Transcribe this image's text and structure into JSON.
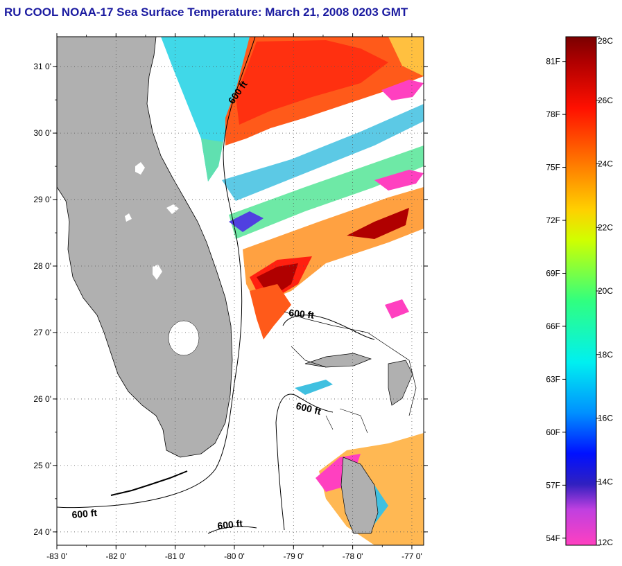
{
  "title": "RU COOL  NOAA-17  Sea Surface Temperature:  March 21, 2008 0203 GMT",
  "map": {
    "lon_range": [
      -83,
      -76.8
    ],
    "lat_range": [
      23.8,
      31.45
    ],
    "x_ticks": [
      "-83 0'",
      "-82 0'",
      "-81 0'",
      "-80 0'",
      "-79 0'",
      "-78 0'",
      "-77 0'"
    ],
    "x_tick_values": [
      -83,
      -82,
      -81,
      -80,
      -79,
      -78,
      -77
    ],
    "y_ticks": [
      "31 0'",
      "30 0'",
      "29 0'",
      "28 0'",
      "27 0'",
      "26 0'",
      "25 0'",
      "24 0'"
    ],
    "y_tick_values": [
      31,
      30,
      29,
      28,
      27,
      26,
      25,
      24
    ],
    "grid": "dotted",
    "contour_label": "600 ft",
    "contour_label_count": 5,
    "colors": {
      "land": "#b0b0b0",
      "no_data": "#ffffff"
    }
  },
  "colorbar": {
    "celsius_labels": [
      "28C",
      "26C",
      "24C",
      "22C",
      "20C",
      "18C",
      "16C",
      "14C",
      "12C"
    ],
    "celsius_values": [
      28,
      26,
      24,
      22,
      20,
      18,
      16,
      14,
      12
    ],
    "fahrenheit_labels": [
      "81F",
      "78F",
      "75F",
      "72F",
      "69F",
      "66F",
      "63F",
      "60F",
      "57F",
      "54F"
    ],
    "fahrenheit_values": [
      81,
      78,
      75,
      72,
      69,
      66,
      63,
      60,
      57,
      54
    ],
    "range_c": [
      12,
      28
    ],
    "stops": [
      "#ff40c0",
      "#c040e0",
      "#3020c0",
      "#0010ff",
      "#0090ff",
      "#00f0f0",
      "#30ff80",
      "#d0ff00",
      "#ffd000",
      "#ff7000",
      "#ff1000",
      "#b00000",
      "#7a0000"
    ]
  }
}
